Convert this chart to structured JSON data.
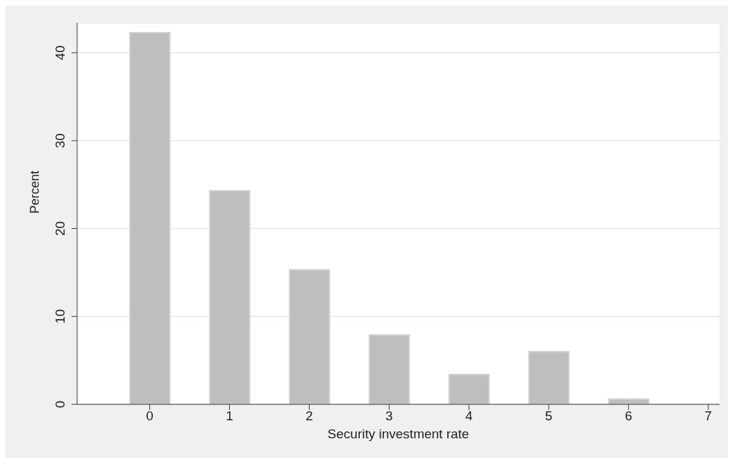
{
  "chart_data": {
    "type": "bar",
    "xlabel": "Security investment rate",
    "ylabel": "Percent",
    "x": [
      0,
      1,
      2,
      3,
      4,
      5,
      6
    ],
    "values": [
      42.3,
      24.3,
      15.3,
      7.9,
      3.4,
      6.0,
      0.6
    ],
    "color": "#bebebe",
    "xlim": [
      -0.91,
      7.14
    ],
    "xticks": [
      0,
      1,
      2,
      3,
      4,
      5,
      6,
      7
    ],
    "ylim": [
      0,
      43.4
    ],
    "yticks": [
      0,
      10,
      20,
      30,
      40
    ],
    "grid": "y"
  }
}
